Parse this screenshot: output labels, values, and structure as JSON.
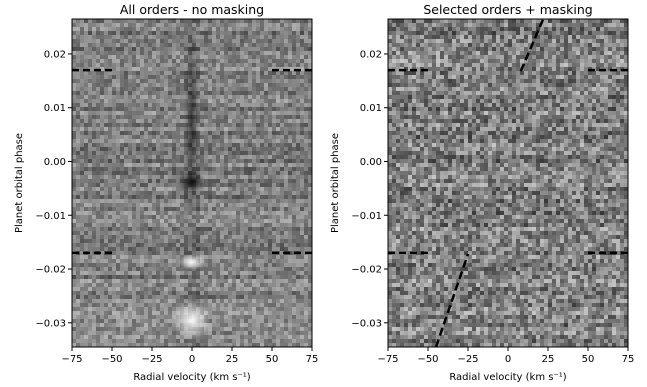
{
  "chart_data": [
    {
      "type": "heatmap",
      "title": "All orders - no masking",
      "xlabel": "Radial velocity (km s⁻¹)",
      "ylabel": "Planet orbital phase",
      "xlim": [
        -75,
        75
      ],
      "ylim": [
        -0.0345,
        0.0265
      ],
      "xticks": [
        "−75",
        "−50",
        "−25",
        "0",
        "25",
        "50",
        "75"
      ],
      "yticks": [
        "−0.03",
        "−0.02",
        "−0.01",
        "0.00",
        "0.01",
        "0.02"
      ],
      "colormap": "grayscale",
      "features": [
        {
          "name": "bright-signal",
          "rv": 0,
          "phase": -0.0305
        },
        {
          "name": "dark-signal",
          "rv": 0,
          "phase": -0.0045
        }
      ],
      "transit_markers": [
        {
          "phase": 0.017,
          "segments": [
            [
              -75,
              -50
            ],
            [
              50,
              75
            ]
          ]
        },
        {
          "phase": -0.017,
          "segments": [
            [
              -75,
              -50
            ],
            [
              50,
              75
            ]
          ]
        }
      ]
    },
    {
      "type": "heatmap",
      "title": "Selected orders + masking",
      "xlabel": "Radial velocity (km s⁻¹)",
      "ylabel": "Planet orbital phase",
      "xlim": [
        -75,
        75
      ],
      "ylim": [
        -0.0345,
        0.0265
      ],
      "xticks": [
        "−75",
        "−50",
        "−25",
        "0",
        "25",
        "50",
        "75"
      ],
      "yticks": [
        "−0.03",
        "−0.02",
        "−0.01",
        "0.00",
        "0.01",
        "0.02"
      ],
      "colormap": "grayscale",
      "transit_markers": [
        {
          "phase": 0.017,
          "segments": [
            [
              -75,
              -50
            ],
            [
              50,
              75
            ]
          ]
        },
        {
          "phase": -0.017,
          "segments": [
            [
              -75,
              -50
            ],
            [
              50,
              75
            ]
          ]
        }
      ],
      "trail_lines": [
        {
          "x": [
            8,
            22
          ],
          "y": [
            0.0168,
            0.0265
          ]
        },
        {
          "x": [
            -45,
            -25
          ],
          "y": [
            -0.0345,
            -0.0172
          ]
        }
      ]
    }
  ]
}
